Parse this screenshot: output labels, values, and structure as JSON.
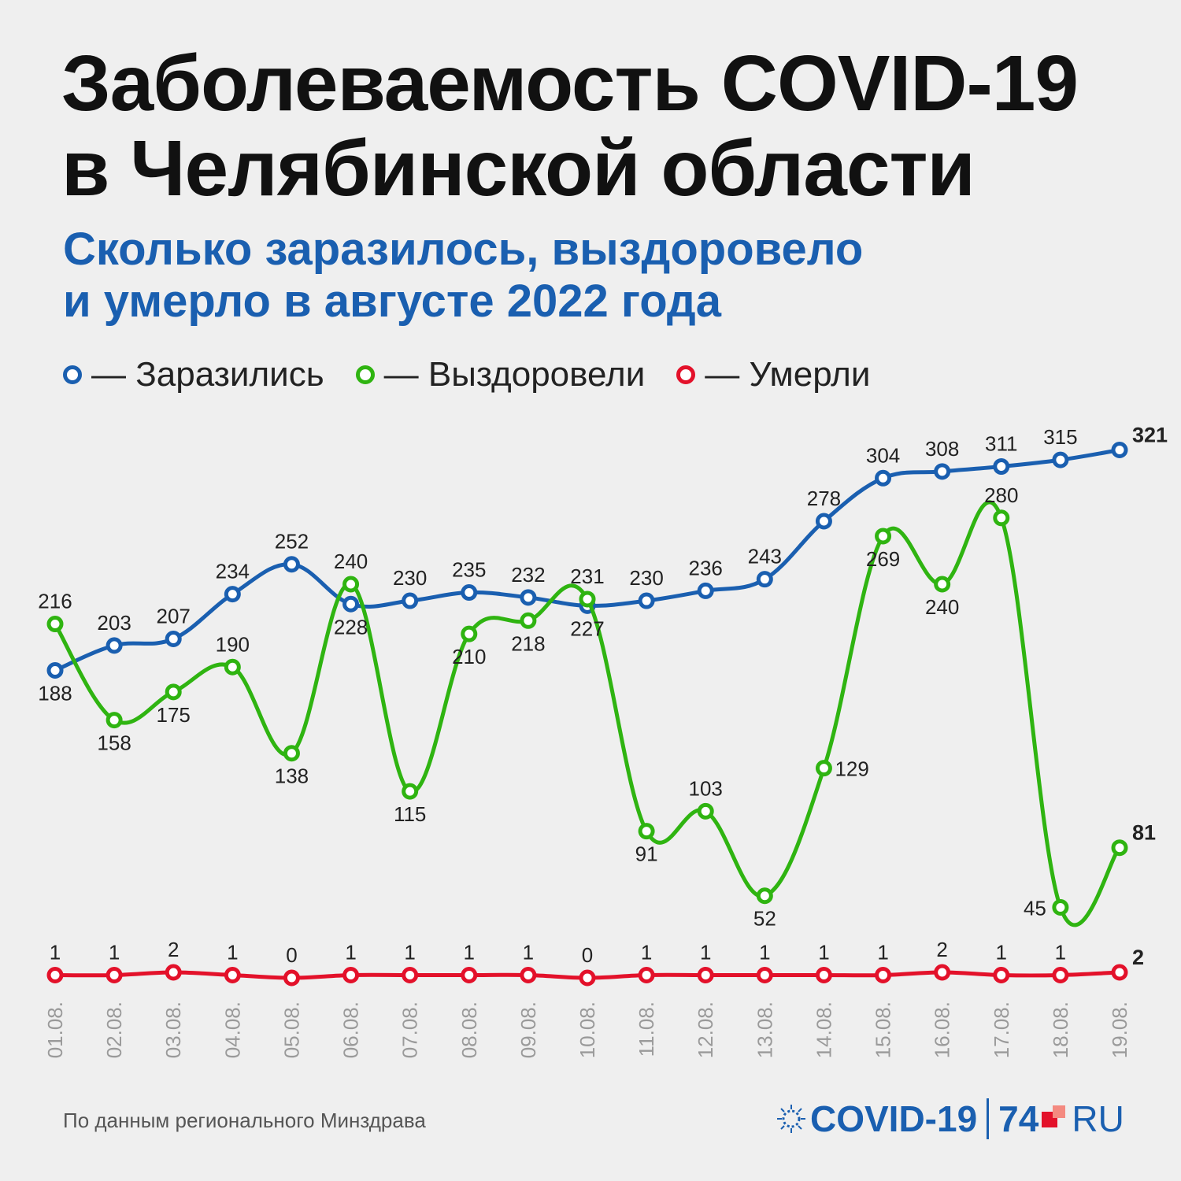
{
  "header": {
    "title_line1": "Заболеваемость COVID-19",
    "title_line2": "в Челябинской области",
    "subtitle_line1": "Сколько заразилось, выздоровело",
    "subtitle_line2": "и умерло в августе 2022 года"
  },
  "legend": {
    "infected": "— Заразились",
    "recovered": "— Выздоровели",
    "died": "— Умерли"
  },
  "colors": {
    "infected": "#1a5fb0",
    "recovered": "#2fb411",
    "died": "#e3112a",
    "background": "#efefef"
  },
  "footer": {
    "source": "По данным регионального Минздрава",
    "logo_covid": "COVID-19",
    "logo_74": "74",
    "logo_ru": "RU"
  },
  "chart_data": {
    "type": "line",
    "categories": [
      "01.08.",
      "02.08.",
      "03.08.",
      "04.08.",
      "05.08.",
      "06.08.",
      "07.08.",
      "08.08.",
      "09.08.",
      "10.08.",
      "11.08.",
      "12.08.",
      "13.08.",
      "14.08.",
      "15.08.",
      "16.08.",
      "17.08.",
      "18.08.",
      "19.08."
    ],
    "series": [
      {
        "key": "infected",
        "name": "Заразились",
        "values": [
          188,
          203,
          207,
          234,
          252,
          228,
          230,
          235,
          232,
          227,
          230,
          236,
          243,
          278,
          304,
          308,
          311,
          315,
          321
        ]
      },
      {
        "key": "recovered",
        "name": "Выздоровели",
        "values": [
          216,
          158,
          175,
          190,
          138,
          240,
          115,
          210,
          218,
          231,
          91,
          103,
          52,
          129,
          269,
          240,
          280,
          45,
          81
        ]
      },
      {
        "key": "died",
        "name": "Умерли",
        "values": [
          1,
          1,
          2,
          1,
          0,
          1,
          1,
          1,
          1,
          0,
          1,
          1,
          1,
          1,
          1,
          2,
          1,
          1,
          2
        ]
      }
    ],
    "title": "",
    "xlabel": "",
    "ylabel": "",
    "grid": false,
    "legend_position": "top-left"
  }
}
